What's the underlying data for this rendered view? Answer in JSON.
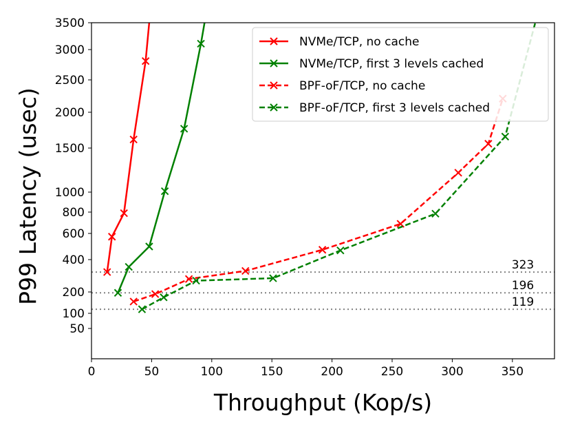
{
  "chart_data": {
    "type": "line",
    "xlabel": "Throughput (Kop/s)",
    "ylabel": "P99 Latency (usec)",
    "xlim": [
      0,
      385
    ],
    "ylim": [
      0,
      3500
    ],
    "xticks": [
      0,
      50,
      100,
      150,
      200,
      250,
      300,
      350
    ],
    "yticks": [
      50,
      100,
      200,
      400,
      600,
      800,
      1000,
      1500,
      2000,
      2500,
      3000,
      3500
    ],
    "legend_position": "top-right",
    "series": [
      {
        "name": "NVMe/TCP, no cache",
        "color": "#ff0000",
        "dashed": false,
        "x": [
          13,
          17,
          27,
          35,
          45,
          48
        ],
        "y": [
          323,
          575,
          790,
          1620,
          2810,
          3500
        ]
      },
      {
        "name": "NVMe/TCP, first 3 levels cached",
        "color": "#008000",
        "dashed": false,
        "x": [
          22,
          31,
          48,
          61,
          77,
          91,
          94
        ],
        "y": [
          196,
          355,
          500,
          1010,
          1770,
          3110,
          3500
        ]
      },
      {
        "name": "BPF-oF/TCP, no cache",
        "color": "#ff0000",
        "dashed": true,
        "x": [
          35,
          53,
          81,
          128,
          192,
          257,
          305,
          330,
          342
        ],
        "y": [
          155,
          190,
          280,
          330,
          475,
          690,
          1220,
          1560,
          2210
        ]
      },
      {
        "name": "BPF-oF/TCP, first 3 levels cached",
        "color": "#008000",
        "dashed": true,
        "x": [
          42,
          60,
          87,
          151,
          207,
          286,
          344,
          369
        ],
        "y": [
          119,
          175,
          270,
          285,
          470,
          785,
          1660,
          3500
        ]
      }
    ],
    "reference_lines": [
      {
        "value": 323,
        "label": "323"
      },
      {
        "value": 196,
        "label": "196"
      },
      {
        "value": 119,
        "label": "119"
      }
    ]
  }
}
